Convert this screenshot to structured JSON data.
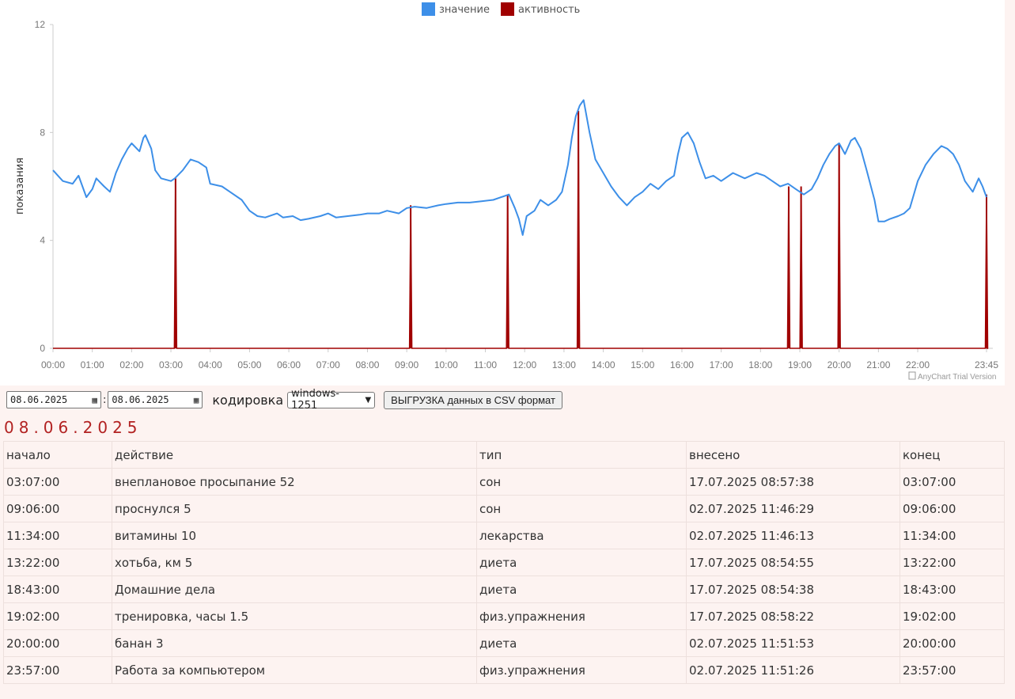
{
  "chart_data": {
    "type": "line",
    "legend": [
      {
        "name": "значение",
        "color": "#3d8fe8"
      },
      {
        "name": "активность",
        "color": "#a00000"
      }
    ],
    "legend_position": "top-center",
    "ylabel": "показания",
    "ylim": [
      0,
      12
    ],
    "yticks": [
      "0",
      "4",
      "8",
      "12"
    ],
    "xlim": [
      0,
      23.75
    ],
    "xticks": [
      {
        "h": 0,
        "label": "00:00"
      },
      {
        "h": 1,
        "label": "01:00"
      },
      {
        "h": 2,
        "label": "02:00"
      },
      {
        "h": 3,
        "label": "03:00"
      },
      {
        "h": 4,
        "label": "04:00"
      },
      {
        "h": 5,
        "label": "05:00"
      },
      {
        "h": 6,
        "label": "06:00"
      },
      {
        "h": 7,
        "label": "07:00"
      },
      {
        "h": 8,
        "label": "08:00"
      },
      {
        "h": 9,
        "label": "09:00"
      },
      {
        "h": 10,
        "label": "10:00"
      },
      {
        "h": 11,
        "label": "11:00"
      },
      {
        "h": 12,
        "label": "12:00"
      },
      {
        "h": 13,
        "label": "13:00"
      },
      {
        "h": 14,
        "label": "14:00"
      },
      {
        "h": 15,
        "label": "15:00"
      },
      {
        "h": 16,
        "label": "16:00"
      },
      {
        "h": 17,
        "label": "17:00"
      },
      {
        "h": 18,
        "label": "18:00"
      },
      {
        "h": 19,
        "label": "19:00"
      },
      {
        "h": 20,
        "label": "20:00"
      },
      {
        "h": 21,
        "label": "21:00"
      },
      {
        "h": 22,
        "label": "22:00"
      },
      {
        "h": 23.75,
        "label": "23:45"
      }
    ],
    "series": [
      {
        "name": "значение",
        "color": "#3d8fe8",
        "points": [
          [
            0.0,
            6.6
          ],
          [
            0.25,
            6.2
          ],
          [
            0.5,
            6.1
          ],
          [
            0.65,
            6.4
          ],
          [
            0.85,
            5.6
          ],
          [
            1.0,
            5.9
          ],
          [
            1.1,
            6.3
          ],
          [
            1.3,
            6.0
          ],
          [
            1.45,
            5.8
          ],
          [
            1.6,
            6.5
          ],
          [
            1.75,
            7.0
          ],
          [
            1.9,
            7.4
          ],
          [
            2.0,
            7.6
          ],
          [
            2.2,
            7.3
          ],
          [
            2.3,
            7.8
          ],
          [
            2.35,
            7.9
          ],
          [
            2.5,
            7.4
          ],
          [
            2.6,
            6.6
          ],
          [
            2.75,
            6.3
          ],
          [
            3.0,
            6.2
          ],
          [
            3.1,
            6.3
          ],
          [
            3.3,
            6.6
          ],
          [
            3.5,
            7.0
          ],
          [
            3.7,
            6.9
          ],
          [
            3.9,
            6.7
          ],
          [
            4.0,
            6.1
          ],
          [
            4.3,
            6.0
          ],
          [
            4.5,
            5.8
          ],
          [
            4.8,
            5.5
          ],
          [
            5.0,
            5.1
          ],
          [
            5.2,
            4.9
          ],
          [
            5.4,
            4.85
          ],
          [
            5.7,
            5.0
          ],
          [
            5.85,
            4.85
          ],
          [
            6.1,
            4.9
          ],
          [
            6.3,
            4.75
          ],
          [
            6.5,
            4.8
          ],
          [
            6.8,
            4.9
          ],
          [
            7.0,
            5.0
          ],
          [
            7.2,
            4.85
          ],
          [
            7.5,
            4.9
          ],
          [
            7.8,
            4.95
          ],
          [
            8.0,
            5.0
          ],
          [
            8.3,
            5.0
          ],
          [
            8.5,
            5.1
          ],
          [
            8.8,
            5.0
          ],
          [
            9.0,
            5.2
          ],
          [
            9.2,
            5.25
          ],
          [
            9.5,
            5.2
          ],
          [
            9.8,
            5.3
          ],
          [
            10.0,
            5.35
          ],
          [
            10.3,
            5.4
          ],
          [
            10.6,
            5.4
          ],
          [
            10.9,
            5.45
          ],
          [
            11.2,
            5.5
          ],
          [
            11.4,
            5.6
          ],
          [
            11.6,
            5.7
          ],
          [
            11.75,
            5.2
          ],
          [
            11.85,
            4.8
          ],
          [
            11.95,
            4.2
          ],
          [
            12.05,
            4.9
          ],
          [
            12.25,
            5.1
          ],
          [
            12.4,
            5.5
          ],
          [
            12.6,
            5.3
          ],
          [
            12.8,
            5.5
          ],
          [
            12.95,
            5.8
          ],
          [
            13.1,
            6.8
          ],
          [
            13.2,
            7.8
          ],
          [
            13.3,
            8.6
          ],
          [
            13.4,
            9.0
          ],
          [
            13.5,
            9.2
          ],
          [
            13.55,
            8.8
          ],
          [
            13.65,
            8.0
          ],
          [
            13.8,
            7.0
          ],
          [
            14.0,
            6.5
          ],
          [
            14.2,
            6.0
          ],
          [
            14.4,
            5.6
          ],
          [
            14.6,
            5.3
          ],
          [
            14.8,
            5.6
          ],
          [
            15.0,
            5.8
          ],
          [
            15.2,
            6.1
          ],
          [
            15.4,
            5.9
          ],
          [
            15.6,
            6.2
          ],
          [
            15.8,
            6.4
          ],
          [
            15.9,
            7.2
          ],
          [
            16.0,
            7.8
          ],
          [
            16.15,
            8.0
          ],
          [
            16.3,
            7.6
          ],
          [
            16.45,
            6.9
          ],
          [
            16.6,
            6.3
          ],
          [
            16.8,
            6.4
          ],
          [
            17.0,
            6.2
          ],
          [
            17.3,
            6.5
          ],
          [
            17.6,
            6.3
          ],
          [
            17.9,
            6.5
          ],
          [
            18.1,
            6.4
          ],
          [
            18.3,
            6.2
          ],
          [
            18.5,
            6.0
          ],
          [
            18.7,
            6.1
          ],
          [
            18.9,
            5.9
          ],
          [
            19.1,
            5.7
          ],
          [
            19.3,
            5.9
          ],
          [
            19.45,
            6.3
          ],
          [
            19.6,
            6.8
          ],
          [
            19.75,
            7.2
          ],
          [
            19.9,
            7.5
          ],
          [
            20.0,
            7.6
          ],
          [
            20.15,
            7.2
          ],
          [
            20.3,
            7.7
          ],
          [
            20.4,
            7.8
          ],
          [
            20.55,
            7.4
          ],
          [
            20.7,
            6.6
          ],
          [
            20.9,
            5.5
          ],
          [
            21.0,
            4.7
          ],
          [
            21.15,
            4.7
          ],
          [
            21.3,
            4.8
          ],
          [
            21.5,
            4.9
          ],
          [
            21.65,
            5.0
          ],
          [
            21.8,
            5.2
          ],
          [
            22.0,
            6.2
          ],
          [
            22.2,
            6.8
          ],
          [
            22.4,
            7.2
          ],
          [
            22.6,
            7.5
          ],
          [
            22.75,
            7.4
          ],
          [
            22.9,
            7.2
          ],
          [
            23.05,
            6.8
          ],
          [
            23.2,
            6.2
          ],
          [
            23.4,
            5.8
          ],
          [
            23.55,
            6.3
          ],
          [
            23.65,
            6.0
          ],
          [
            23.75,
            5.6
          ]
        ]
      },
      {
        "name": "активность",
        "color": "#a00000",
        "spikes": [
          {
            "time": "03:07",
            "h": 3.117,
            "value": 6.3
          },
          {
            "time": "09:06",
            "h": 9.1,
            "value": 5.3
          },
          {
            "time": "11:34",
            "h": 11.567,
            "value": 5.7
          },
          {
            "time": "13:22",
            "h": 13.367,
            "value": 8.8
          },
          {
            "time": "18:43",
            "h": 18.717,
            "value": 6.0
          },
          {
            "time": "19:02",
            "h": 19.033,
            "value": 6.0
          },
          {
            "time": "20:00",
            "h": 20.0,
            "value": 7.6
          },
          {
            "time": "23:57",
            "h": 23.75,
            "value": 5.7
          }
        ]
      }
    ],
    "credit": "AnyChart Trial Version"
  },
  "controls": {
    "date_from": "08.06.2025",
    "date_to": "08.06.2025",
    "separator": ":",
    "encoding_label": "кодировка",
    "encoding_value": "windows-1251",
    "export_button": "ВЫГРУЗКА данных в CSV формат"
  },
  "day_heading": "08.06.2025",
  "table": {
    "headers": [
      "начало",
      "действие",
      "тип",
      "внесено",
      "конец"
    ],
    "rows": [
      [
        "03:07:00",
        "внеплановое просыпание 52",
        "сон",
        "17.07.2025 08:57:38",
        "03:07:00"
      ],
      [
        "09:06:00",
        "проснулся 5",
        "сон",
        "02.07.2025 11:46:29",
        "09:06:00"
      ],
      [
        "11:34:00",
        "витамины 10",
        "лекарства",
        "02.07.2025 11:46:13",
        "11:34:00"
      ],
      [
        "13:22:00",
        "хотьба, км 5",
        "диета",
        "17.07.2025 08:54:55",
        "13:22:00"
      ],
      [
        "18:43:00",
        "Домашние дела",
        "диета",
        "17.07.2025 08:54:38",
        "18:43:00"
      ],
      [
        "19:02:00",
        "тренировка, часы 1.5",
        "физ.упражнения",
        "17.07.2025 08:58:22",
        "19:02:00"
      ],
      [
        "20:00:00",
        "банан 3",
        "диета",
        "02.07.2025 11:51:53",
        "20:00:00"
      ],
      [
        "23:57:00",
        "Работа за компьютером",
        "физ.упражнения",
        "02.07.2025 11:51:26",
        "23:57:00"
      ]
    ]
  }
}
